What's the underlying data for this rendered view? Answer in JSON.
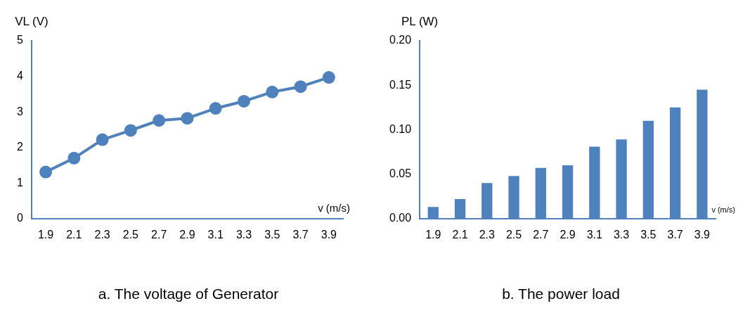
{
  "chart_data": [
    {
      "type": "line",
      "ylabel": "VL (V)",
      "xlabel": "v (m/s)",
      "annotations": [
        "a. The voltage of Generator"
      ],
      "categories": [
        "1.9",
        "2.1",
        "2.3",
        "2.5",
        "2.7",
        "2.9",
        "3.1",
        "3.3",
        "3.5",
        "3.7",
        "3.9"
      ],
      "marker": "circle",
      "series": [
        {
          "color": "#4f81bd",
          "values": [
            1.31,
            1.7,
            2.22,
            2.48,
            2.76,
            2.82,
            3.1,
            3.3,
            3.56,
            3.71,
            3.97
          ]
        }
      ],
      "ylim": [
        0,
        5
      ],
      "yticks": [
        0,
        1,
        2,
        3,
        4,
        5
      ]
    },
    {
      "type": "bar",
      "ylabel": "PL (W)",
      "xlabel": "v (m/s)",
      "annotations": [
        "b. The power load"
      ],
      "categories": [
        "1.9",
        "2.1",
        "2.3",
        "2.5",
        "2.7",
        "2.9",
        "3.1",
        "3.3",
        "3.5",
        "3.7",
        "3.9"
      ],
      "series": [
        {
          "color": "#4f81bd",
          "values": [
            0.013,
            0.022,
            0.04,
            0.048,
            0.057,
            0.06,
            0.081,
            0.089,
            0.11,
            0.125,
            0.145
          ]
        }
      ],
      "ylim": [
        0,
        0.2
      ],
      "yticks": [
        {
          "value": 0,
          "label": "0.00"
        },
        {
          "value": 0.05,
          "label": "0.05"
        },
        {
          "value": 0.1,
          "label": "0.10"
        },
        {
          "value": 0.15,
          "label": "0.15"
        },
        {
          "value": 0.2,
          "label": "0.20"
        }
      ]
    }
  ]
}
